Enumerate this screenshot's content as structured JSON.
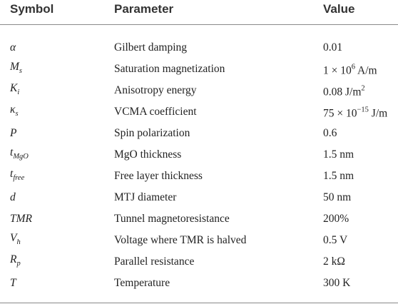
{
  "table": {
    "header": [
      "Symbol",
      "Parameter",
      "Value"
    ],
    "rows": [
      {
        "symbol": [
          {
            "text": "α"
          }
        ],
        "parameter": "Gilbert damping",
        "value": [
          {
            "text": "0.01"
          }
        ]
      },
      {
        "symbol": [
          {
            "text": "M"
          },
          {
            "text": "s",
            "sub": true
          }
        ],
        "parameter": "Saturation magnetization",
        "value": [
          {
            "text": "1 × 10"
          },
          {
            "text": "6",
            "sup": true
          },
          {
            "text": " A/m"
          }
        ]
      },
      {
        "symbol": [
          {
            "text": "K"
          },
          {
            "text": "i",
            "sub": true
          }
        ],
        "parameter": "Anisotropy energy",
        "value": [
          {
            "text": "0.08 J/m"
          },
          {
            "text": "2",
            "sup": true
          }
        ]
      },
      {
        "symbol": [
          {
            "text": "κ"
          },
          {
            "text": "s",
            "sub": true
          }
        ],
        "parameter": "VCMA coefficient",
        "value": [
          {
            "text": "75 × 10"
          },
          {
            "text": "−15",
            "sup": true
          },
          {
            "text": " J/m"
          }
        ]
      },
      {
        "symbol": [
          {
            "text": "P"
          }
        ],
        "parameter": "Spin polarization",
        "value": [
          {
            "text": "0.6"
          }
        ]
      },
      {
        "symbol": [
          {
            "text": "t"
          },
          {
            "text": "MgO",
            "sub": true
          }
        ],
        "parameter": "MgO thickness",
        "value": [
          {
            "text": "1.5 nm"
          }
        ]
      },
      {
        "symbol": [
          {
            "text": "t"
          },
          {
            "text": "free",
            "sub": true
          }
        ],
        "parameter": "Free layer thickness",
        "value": [
          {
            "text": "1.5 nm"
          }
        ]
      },
      {
        "symbol": [
          {
            "text": "d"
          }
        ],
        "parameter": "MTJ diameter",
        "value": [
          {
            "text": "50 nm"
          }
        ]
      },
      {
        "symbol": [
          {
            "text": "TMR"
          }
        ],
        "parameter": "Tunnel magnetoresistance",
        "value": [
          {
            "text": "200%"
          }
        ]
      },
      {
        "symbol": [
          {
            "text": "V"
          },
          {
            "text": "h",
            "sub": true
          }
        ],
        "parameter": "Voltage where TMR is halved",
        "value": [
          {
            "text": "0.5 V"
          }
        ]
      },
      {
        "symbol": [
          {
            "text": "R"
          },
          {
            "text": "p",
            "sub": true
          }
        ],
        "parameter": "Parallel resistance",
        "value": [
          {
            "text": "2 kΩ"
          }
        ]
      },
      {
        "symbol": [
          {
            "text": "T"
          }
        ],
        "parameter": "Temperature",
        "value": [
          {
            "text": "300 K"
          }
        ]
      }
    ]
  }
}
